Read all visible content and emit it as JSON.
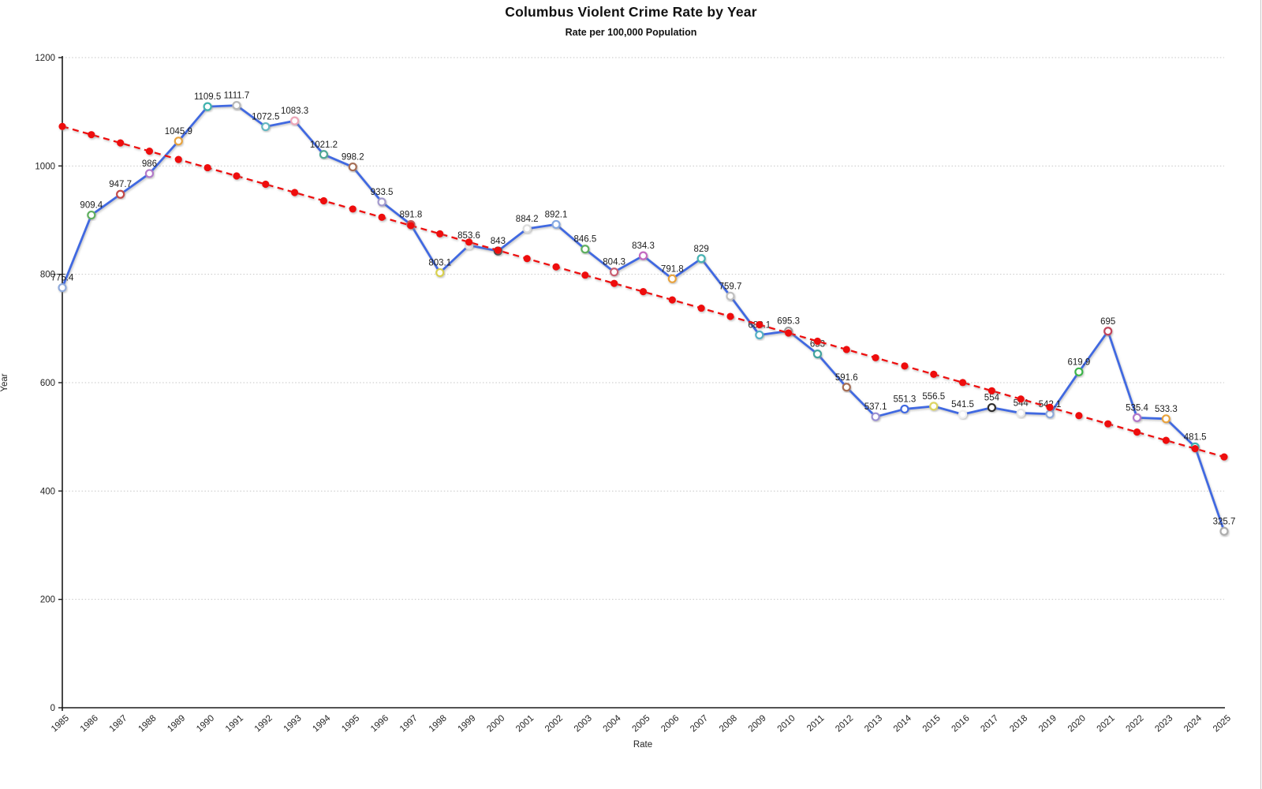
{
  "page": {
    "background": "#ffffff",
    "border_color": "#c9c9c9"
  },
  "chart_data": {
    "type": "line",
    "title": "Columbus Violent Crime Rate by Year",
    "subtitle": "Rate per 100,000 Population",
    "xlabel": "Rate",
    "ylabel": "Year",
    "ylim": [
      0,
      1200
    ],
    "yticks": [
      0,
      200,
      400,
      600,
      800,
      1000,
      1200
    ],
    "grid": "horizontal-dotted",
    "grid_color": "#c6c6c6",
    "axis_color": "#1a1a1a",
    "label_color": "#1c1c1c",
    "x_tick_labels": [
      "1985",
      "1986",
      "1987",
      "1988",
      "1989",
      "1990",
      "1991",
      "1992",
      "1993",
      "1994",
      "1995",
      "1996",
      "1997",
      "1998",
      "1999",
      "2000",
      "2001",
      "2002",
      "2003",
      "2004",
      "2005",
      "2006",
      "2007",
      "2008",
      "2009",
      "2010",
      "2011",
      "2012",
      "2013",
      "2014",
      "2015",
      "2016",
      "2017",
      "2018",
      "2019",
      "2020",
      "2021",
      "2022",
      "2023",
      "2024",
      "2025"
    ],
    "series": [
      {
        "name": "violent-crime-rate",
        "type": "line-with-markers",
        "line_color": "#4169E1",
        "marker_fill": "#ffffff",
        "values": [
          775.4,
          909.4,
          947.7,
          986,
          1045.9,
          1109.5,
          1111.7,
          1072.5,
          1083.3,
          1021.2,
          998.2,
          933.5,
          891.8,
          803.1,
          853.6,
          843,
          884.2,
          892.1,
          846.5,
          804.3,
          834.3,
          791.8,
          829,
          759.7,
          688.1,
          695.3,
          653,
          591.6,
          537.1,
          551.3,
          556.5,
          541.5,
          554,
          544,
          542.1,
          619.9,
          695,
          535.4,
          533.3,
          481.5,
          325.7
        ],
        "marker_colors": [
          "#8FAADC",
          "#5FAF5F",
          "#C24A4A",
          "#B279C9",
          "#E8A33C",
          "#3FB3AE",
          "#B9B9B9",
          "#63B7C0",
          "#EDA6B8",
          "#4FA895",
          "#A66E55",
          "#A49BCE",
          "#C95555",
          "#D8D04E",
          "#E3E3E3",
          "#3B3B3B",
          "#DCDCDC",
          "#85A9E2",
          "#5FAF5F",
          "#C95F72",
          "#C46BC0",
          "#E8A33C",
          "#45B2B2",
          "#BFBFBF",
          "#55B0C4",
          "#9A9A9A",
          "#43A49E",
          "#A66E55",
          "#9A8FD2",
          "#4169E1",
          "#DDD564",
          "#EFEFEF",
          "#2E2E2E",
          "#E8E8E8",
          "#8FAADC",
          "#3DB54A",
          "#C2455C",
          "#B279C9",
          "#E8A33C",
          "#3FB3AE",
          "#ADADAD"
        ],
        "point_labels_visible": true
      },
      {
        "name": "linear-trend",
        "type": "trend-line",
        "color": "#EE1111",
        "style": "dashed-with-dots",
        "start_value": 1073,
        "end_value": 463
      }
    ]
  }
}
